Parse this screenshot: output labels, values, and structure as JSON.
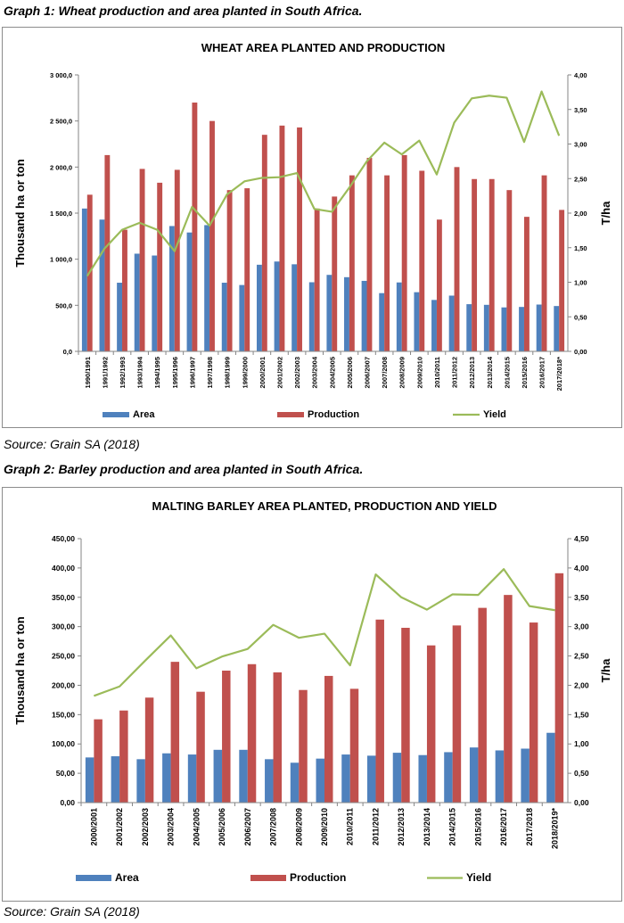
{
  "captions": {
    "graph1": "Graph 1: Wheat production and area planted in South Africa.",
    "source1": "Source: Grain SA (2018)",
    "graph2": "Graph 2: Barley production and area planted in South Africa.",
    "source2": "Source: Grain SA (2018)"
  },
  "colors": {
    "area": "#4f81bd",
    "production": "#c0504d",
    "yield": "#9bbb59",
    "axis": "#868686"
  },
  "chart_data": [
    {
      "type": "bar",
      "title": "WHEAT AREA PLANTED AND PRODUCTION",
      "ylabel": "Thousand ha or ton",
      "y2label": "T/ha",
      "ylim": [
        0,
        3000
      ],
      "y2lim": [
        0,
        4
      ],
      "yticks": [
        "0,0",
        "500,0",
        "1 000,0",
        "1 500,0",
        "2 000,0",
        "2 500,0",
        "3 000,0"
      ],
      "y2ticks": [
        "0,00",
        "0,50",
        "1,00",
        "1,50",
        "2,00",
        "2,50",
        "3,00",
        "3,50",
        "4,00"
      ],
      "grid": false,
      "legend_position": "bottom",
      "categories": [
        "1990/1991",
        "1991/1992",
        "1992/1993",
        "1993/1994",
        "1994/1995",
        "1995/1996",
        "1996/1997",
        "1997/1998",
        "1998/1999",
        "1999/2000",
        "2000/2001",
        "2001/2002",
        "2002/2003",
        "2003/2004",
        "2004/2005",
        "2005/2006",
        "2006/2007",
        "2007/2008",
        "2008/2009",
        "2009/2010",
        "2010/2011",
        "2011/2012",
        "2012/2013",
        "2013/2014",
        "2014/2015",
        "2015/2016",
        "2016/2017",
        "2017/2018*"
      ],
      "series": [
        {
          "name": "Area",
          "type": "bar",
          "axis": "left",
          "values": [
            1550,
            1430,
            745,
            1060,
            1040,
            1360,
            1290,
            1370,
            745,
            720,
            940,
            975,
            945,
            750,
            830,
            805,
            765,
            632,
            748,
            642,
            558,
            605,
            512,
            505,
            477,
            482,
            508,
            492
          ]
        },
        {
          "name": "Production",
          "type": "bar",
          "axis": "left",
          "values": [
            1700,
            2130,
            1320,
            1980,
            1830,
            1970,
            2700,
            2500,
            1750,
            1770,
            2350,
            2450,
            2430,
            1550,
            1680,
            1910,
            2100,
            1910,
            2130,
            1960,
            1430,
            2000,
            1870,
            1870,
            1750,
            1460,
            1910,
            1535
          ]
        },
        {
          "name": "Yield",
          "type": "line",
          "axis": "right",
          "values": [
            1.09,
            1.49,
            1.76,
            1.86,
            1.76,
            1.45,
            2.09,
            1.82,
            2.27,
            2.46,
            2.51,
            2.52,
            2.58,
            2.06,
            2.02,
            2.37,
            2.75,
            3.02,
            2.85,
            3.05,
            2.56,
            3.31,
            3.66,
            3.7,
            3.67,
            3.03,
            3.76,
            3.12
          ]
        }
      ]
    },
    {
      "type": "bar",
      "title": "MALTING BARLEY AREA PLANTED, PRODUCTION AND YIELD",
      "ylabel": "Thousand ha or ton",
      "y2label": "T/ha",
      "ylim": [
        0,
        450
      ],
      "y2lim": [
        0,
        4.5
      ],
      "yticks": [
        "0,00",
        "50,00",
        "100,00",
        "150,00",
        "200,00",
        "250,00",
        "300,00",
        "350,00",
        "400,00",
        "450,00"
      ],
      "y2ticks": [
        "0,00",
        "0,50",
        "1,00",
        "1,50",
        "2,00",
        "2,50",
        "3,00",
        "3,50",
        "4,00",
        "4,50"
      ],
      "grid": false,
      "legend_position": "bottom",
      "categories": [
        "2000/2001",
        "2001/2002",
        "2002/2003",
        "2003/2004",
        "2004/2005",
        "2005/2006",
        "2006/2007",
        "2007/2008",
        "2008/2009",
        "2009/2010",
        "2010/2011",
        "2011/2012",
        "2012/2013",
        "2013/2014",
        "2014/2015",
        "2015/2016",
        "2016/2017",
        "2017/2018",
        "2018/2019*"
      ],
      "series": [
        {
          "name": "Area",
          "type": "bar",
          "axis": "left",
          "values": [
            77,
            79,
            74,
            84,
            82,
            90,
            90,
            74,
            68,
            75,
            82,
            80,
            85,
            81,
            86,
            94,
            89,
            92,
            119
          ]
        },
        {
          "name": "Production",
          "type": "bar",
          "axis": "left",
          "values": [
            142,
            157,
            179,
            240,
            189,
            225,
            236,
            222,
            192,
            216,
            194,
            312,
            298,
            268,
            302,
            332,
            354,
            307,
            391
          ]
        },
        {
          "name": "Yield",
          "type": "line",
          "axis": "right",
          "values": [
            1.82,
            1.98,
            2.42,
            2.85,
            2.29,
            2.49,
            2.62,
            3.03,
            2.81,
            2.88,
            2.34,
            3.89,
            3.5,
            3.29,
            3.55,
            3.54,
            3.98,
            3.35,
            3.28
          ]
        }
      ]
    }
  ]
}
